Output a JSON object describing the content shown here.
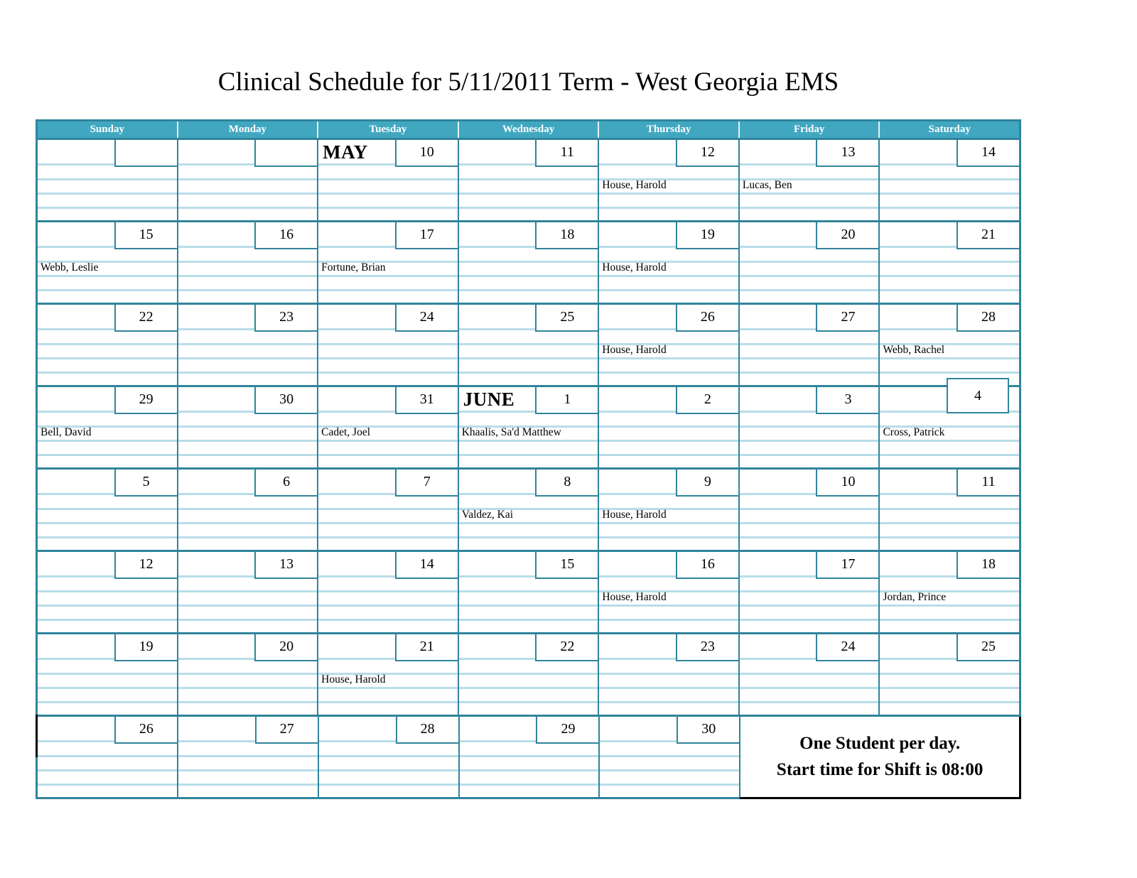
{
  "title": "Clinical Schedule for 5/11/2011 Term - West Georgia EMS",
  "colors": {
    "header_bg": "#41a7c1",
    "grid_border": "#31849b",
    "rule_line": "#b8dde8",
    "note_border": "#000000"
  },
  "day_headers": [
    "Sunday",
    "Monday",
    "Tuesday",
    "Wednesday",
    "Thursday",
    "Friday",
    "Saturday"
  ],
  "note": {
    "line1": "One Student per day.",
    "line2": "Start time for Shift is 08:00"
  },
  "weeks": [
    {
      "days": [
        {
          "num": ""
        },
        {
          "num": ""
        },
        {
          "num": "10",
          "month": "MAY"
        },
        {
          "num": "11"
        },
        {
          "num": "12",
          "name": "House, Harold"
        },
        {
          "num": "13",
          "name": "Lucas, Ben"
        },
        {
          "num": "14"
        }
      ]
    },
    {
      "days": [
        {
          "num": "15",
          "name": "Webb, Leslie"
        },
        {
          "num": "16"
        },
        {
          "num": "17",
          "name": "Fortune, Brian"
        },
        {
          "num": "18"
        },
        {
          "num": "19",
          "name": "House, Harold"
        },
        {
          "num": "20"
        },
        {
          "num": "21"
        }
      ]
    },
    {
      "days": [
        {
          "num": "22"
        },
        {
          "num": "23"
        },
        {
          "num": "24"
        },
        {
          "num": "25"
        },
        {
          "num": "26",
          "name": "House, Harold"
        },
        {
          "num": "27"
        },
        {
          "num": "28",
          "name": "Webb, Rachel"
        }
      ]
    },
    {
      "days": [
        {
          "num": "29",
          "name": "Bell, David"
        },
        {
          "num": "30"
        },
        {
          "num": "31",
          "name": "Cadet, Joel"
        },
        {
          "num": "1",
          "month": "JUNE",
          "name": "Khaalis, Sa'd Matthew"
        },
        {
          "num": "2"
        },
        {
          "num": "3"
        },
        {
          "num": "4",
          "name": "Cross, Patrick",
          "float_box": true
        }
      ]
    },
    {
      "days": [
        {
          "num": "5"
        },
        {
          "num": "6"
        },
        {
          "num": "7"
        },
        {
          "num": "8",
          "name": "Valdez, Kai"
        },
        {
          "num": "9",
          "name": "House, Harold"
        },
        {
          "num": "10"
        },
        {
          "num": "11"
        }
      ]
    },
    {
      "days": [
        {
          "num": "12"
        },
        {
          "num": "13"
        },
        {
          "num": "14"
        },
        {
          "num": "15"
        },
        {
          "num": "16",
          "name": "House, Harold"
        },
        {
          "num": "17"
        },
        {
          "num": "18",
          "name": "Jordan, Prince"
        }
      ]
    },
    {
      "days": [
        {
          "num": "19"
        },
        {
          "num": "20"
        },
        {
          "num": "21",
          "name": "House, Harold"
        },
        {
          "num": "22"
        },
        {
          "num": "23"
        },
        {
          "num": "24"
        },
        {
          "num": "25"
        }
      ]
    },
    {
      "days": [
        {
          "num": "26"
        },
        {
          "num": "27"
        },
        {
          "num": "28"
        },
        {
          "num": "29"
        },
        {
          "num": "30"
        },
        {
          "note": true,
          "span": 2
        }
      ],
      "black_left_mark": true
    }
  ]
}
